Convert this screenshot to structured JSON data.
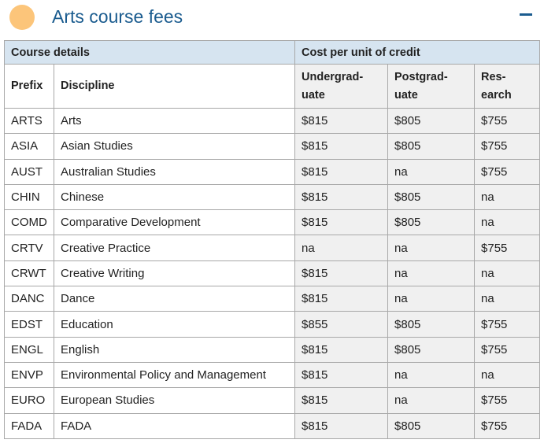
{
  "header": {
    "title": "Arts course fees",
    "accent_color": "#fcc57a",
    "title_color": "#1b5c8f",
    "collapse_icon": "minus-icon"
  },
  "table": {
    "group_headers": [
      "Course details",
      "Cost per unit of credit"
    ],
    "columns": {
      "prefix": "Prefix",
      "discipline": "Discipline",
      "undergrad_1": "Undergrad-",
      "undergrad_2": "uate",
      "postgrad_1": "Postgrad-",
      "postgrad_2": "uate",
      "research_1": "Res-",
      "research_2": "earch"
    },
    "rows": [
      {
        "prefix": "ARTS",
        "discipline": "Arts",
        "undergraduate": "$815",
        "postgraduate": "$805",
        "research": "$755"
      },
      {
        "prefix": "ASIA",
        "discipline": "Asian Studies",
        "undergraduate": "$815",
        "postgraduate": "$805",
        "research": "$755"
      },
      {
        "prefix": "AUST",
        "discipline": "Australian Studies",
        "undergraduate": "$815",
        "postgraduate": "na",
        "research": "$755"
      },
      {
        "prefix": "CHIN",
        "discipline": "Chinese",
        "undergraduate": "$815",
        "postgraduate": "$805",
        "research": "na"
      },
      {
        "prefix": "COMD",
        "discipline": "Comparative Development",
        "undergraduate": "$815",
        "postgraduate": "$805",
        "research": "na"
      },
      {
        "prefix": "CRTV",
        "discipline": "Creative Practice",
        "undergraduate": "na",
        "postgraduate": "na",
        "research": "$755"
      },
      {
        "prefix": "CRWT",
        "discipline": "Creative Writing",
        "undergraduate": "$815",
        "postgraduate": "na",
        "research": "na"
      },
      {
        "prefix": "DANC",
        "discipline": "Dance",
        "undergraduate": "$815",
        "postgraduate": "na",
        "research": "na"
      },
      {
        "prefix": "EDST",
        "discipline": "Education",
        "undergraduate": "$855",
        "postgraduate": "$805",
        "research": "$755"
      },
      {
        "prefix": "ENGL",
        "discipline": "English",
        "undergraduate": "$815",
        "postgraduate": "$805",
        "research": "$755"
      },
      {
        "prefix": "ENVP",
        "discipline": "Environmental Policy and Management",
        "undergraduate": "$815",
        "postgraduate": "na",
        "research": "na"
      },
      {
        "prefix": "EURO",
        "discipline": "European Studies",
        "undergraduate": "$815",
        "postgraduate": "na",
        "research": "$755"
      },
      {
        "prefix": "FADA",
        "discipline": "FADA",
        "undergraduate": "$815",
        "postgraduate": "$805",
        "research": "$755"
      }
    ]
  }
}
